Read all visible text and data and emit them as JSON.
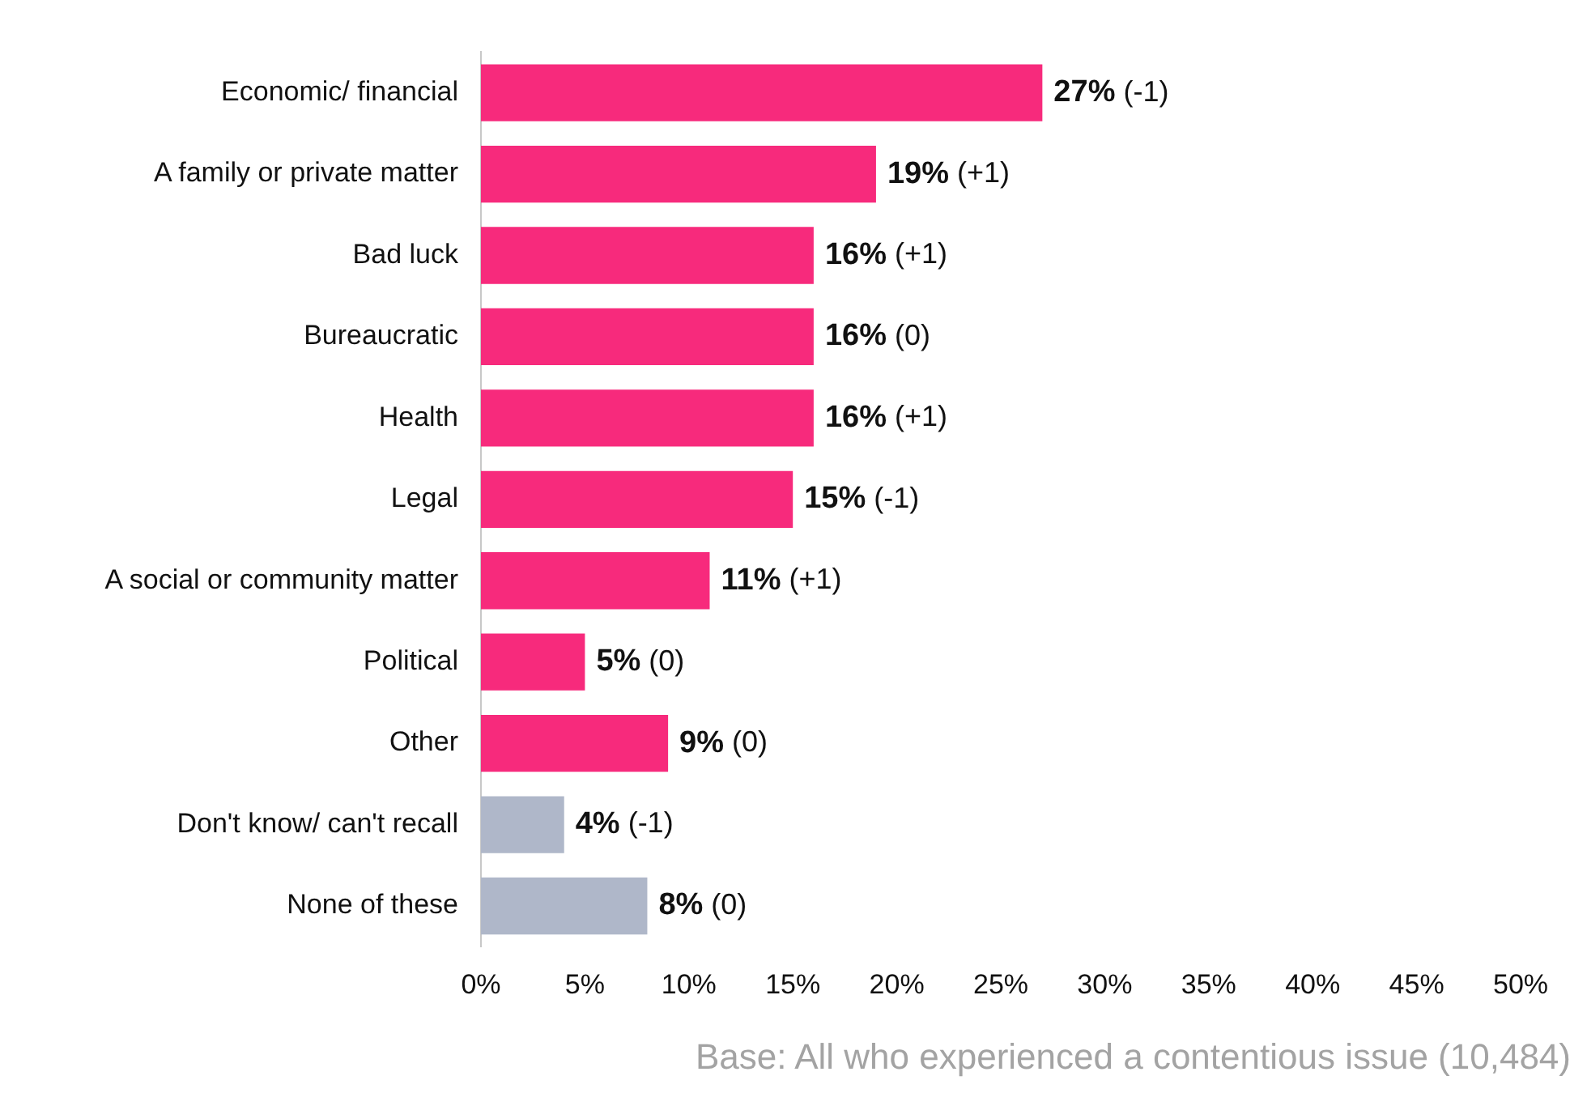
{
  "chart_data": {
    "type": "bar",
    "orientation": "horizontal",
    "categories": [
      "Economic/ financial",
      "A family or private matter",
      "Bad luck",
      "Bureaucratic",
      "Health",
      "Legal",
      "A social or community matter",
      "Political",
      "Other",
      "Don't know/ can't recall",
      "None of these"
    ],
    "values": [
      27,
      19,
      16,
      16,
      16,
      15,
      11,
      5,
      9,
      4,
      8
    ],
    "colors": [
      "#f72a7c",
      "#f72a7c",
      "#f72a7c",
      "#f72a7c",
      "#f72a7c",
      "#f72a7c",
      "#f72a7c",
      "#f72a7c",
      "#f72a7c",
      "#afb7c9",
      "#afb7c9"
    ],
    "value_labels": [
      "27% (-1)",
      "19% (+1)",
      "16% (+1)",
      "16% (0)",
      "16% (+1)",
      "15% (-1)",
      "11% (+1)",
      "5% (0)",
      "9% (0)",
      "4% (-1)",
      "8% (0)"
    ],
    "xlim": [
      0,
      50
    ],
    "xticks": [
      {
        "value": 0,
        "label": "0%"
      },
      {
        "value": 5,
        "label": "5%"
      },
      {
        "value": 10,
        "label": "10%"
      },
      {
        "value": 15,
        "label": "15%"
      },
      {
        "value": 20,
        "label": "20%"
      },
      {
        "value": 25,
        "label": "25%"
      },
      {
        "value": 30,
        "label": "30%"
      },
      {
        "value": 35,
        "label": "35%"
      },
      {
        "value": 40,
        "label": "40%"
      },
      {
        "value": 45,
        "label": "45%"
      },
      {
        "value": 50,
        "label": "50%"
      }
    ],
    "grid": false,
    "legend": false,
    "annotations": [
      "Base: All who experienced a contentious issue (10,484)"
    ]
  }
}
